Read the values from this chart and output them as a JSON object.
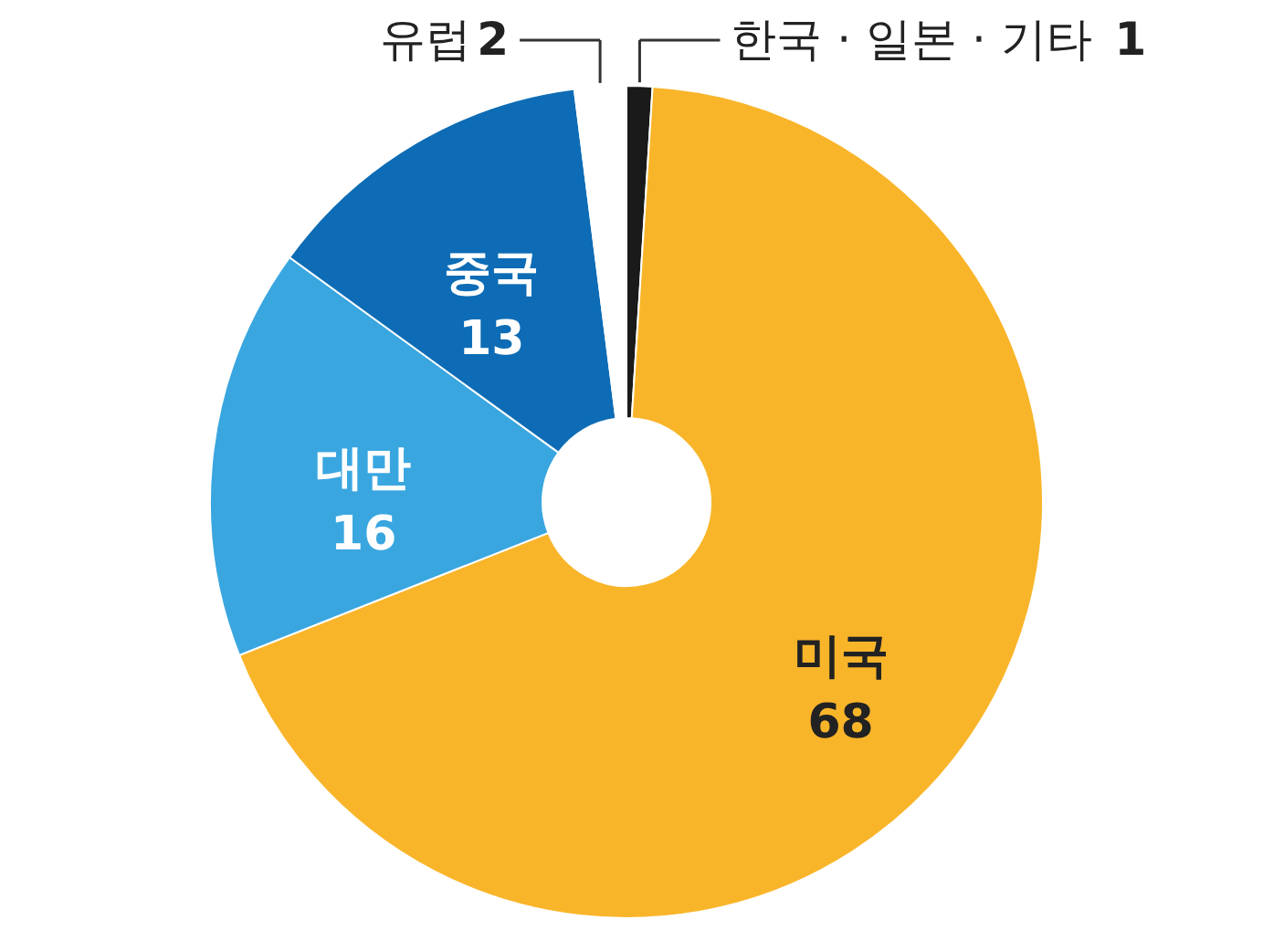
{
  "chart_data": {
    "type": "donut",
    "categories": [
      "한국 · 일본 · 기타",
      "미국",
      "대만",
      "중국",
      "유럽"
    ],
    "values": [
      1,
      68,
      16,
      13,
      2
    ],
    "colors": [
      "#1a1a1a",
      "#f9b52a",
      "#3aa6e0",
      "#0d6cb5",
      "#ffffff"
    ],
    "data_labels": true
  }
}
